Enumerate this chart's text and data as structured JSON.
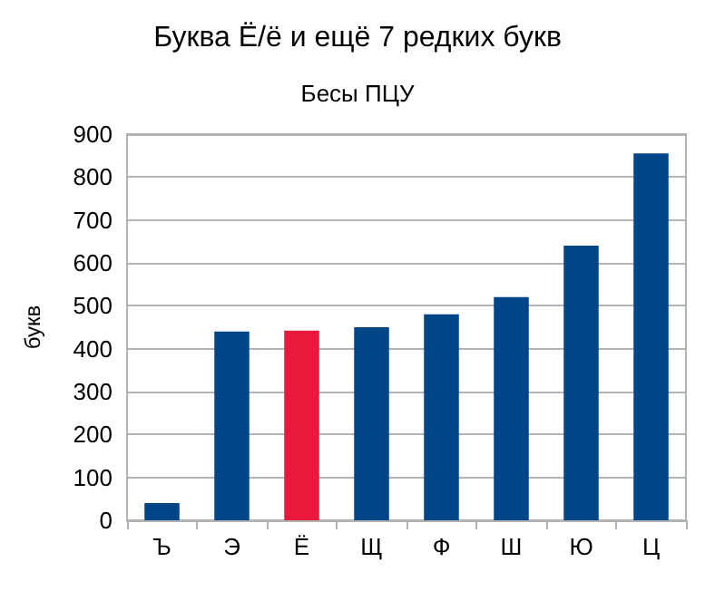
{
  "chart_data": {
    "type": "bar",
    "title": "Буква Ё/ё и ещё 7 редких букв",
    "subtitle": "Бесы ПЦУ",
    "ylabel": "букв",
    "categories": [
      "Ъ",
      "Э",
      "Ё",
      "Щ",
      "Ф",
      "Ш",
      "Ю",
      "Ц"
    ],
    "values": [
      40,
      440,
      442,
      450,
      480,
      520,
      640,
      855
    ],
    "colors": [
      "#004586",
      "#004586",
      "#e8193c",
      "#004586",
      "#004586",
      "#004586",
      "#004586",
      "#004586"
    ],
    "ylim": [
      0,
      900
    ],
    "yticks": [
      0,
      100,
      200,
      300,
      400,
      500,
      600,
      700,
      800,
      900
    ],
    "grid": "y"
  }
}
